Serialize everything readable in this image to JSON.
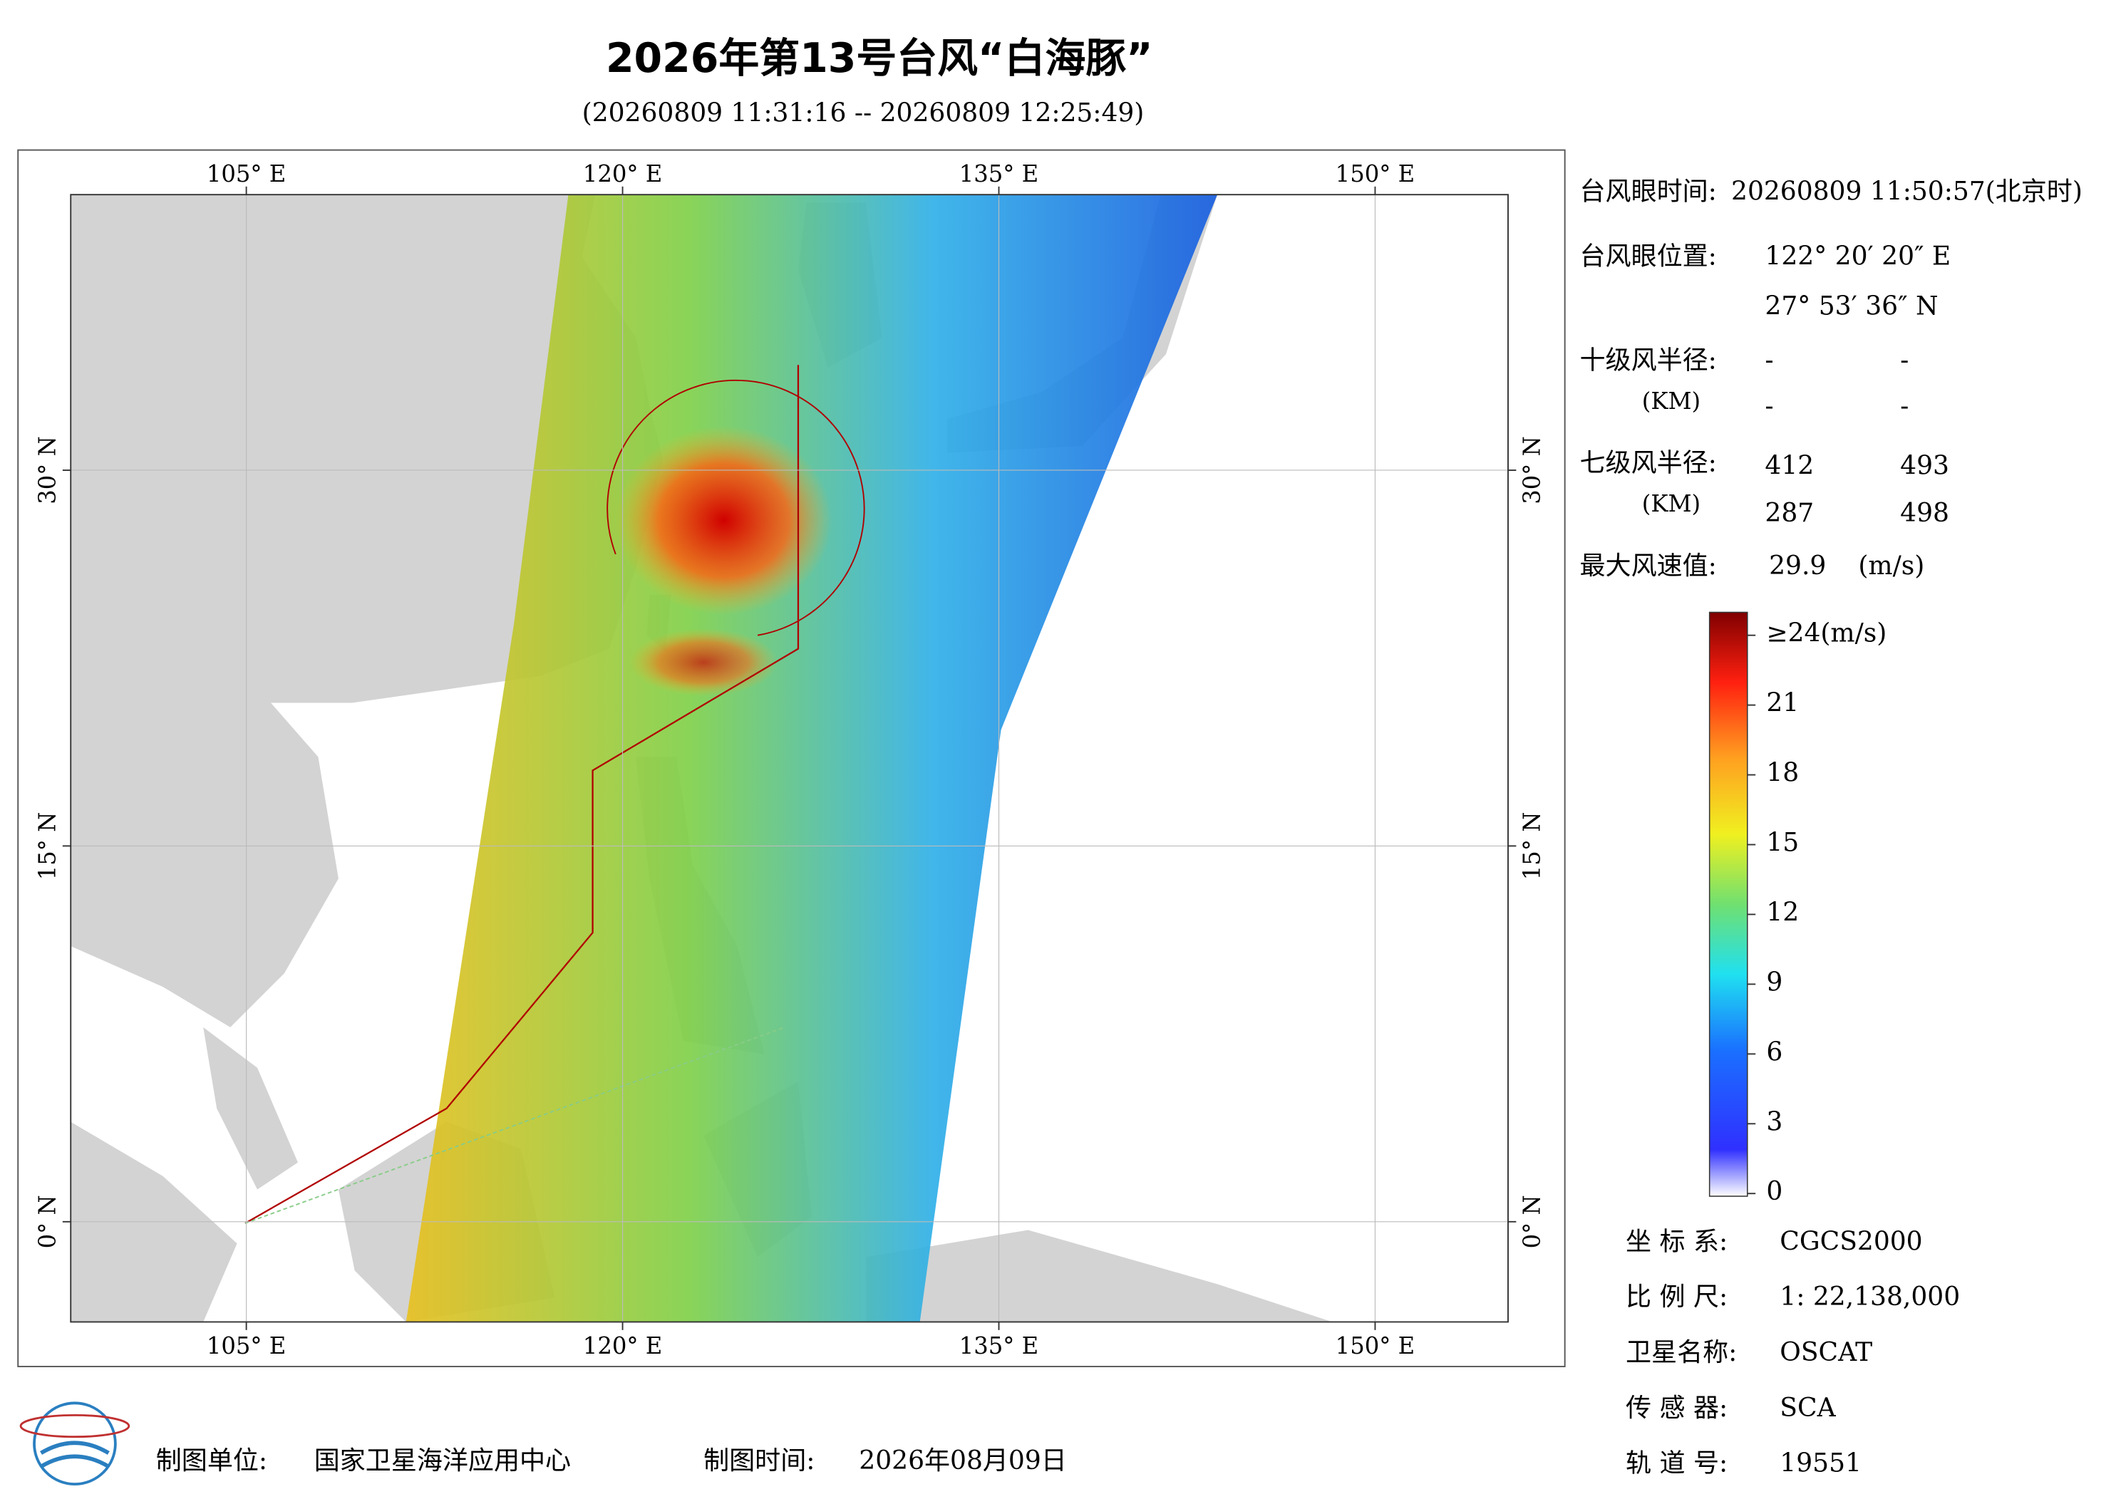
{
  "title": "2026年第13号台风“白海豚”",
  "subtitle": "(20260809 11:31:16 -- 20260809 12:25:49)",
  "map": {
    "lon_range": [
      98,
      155.3
    ],
    "lat_range": [
      -4,
      41
    ],
    "lon_ticks": [
      {
        "value": 105,
        "label": "105° E"
      },
      {
        "value": 120,
        "label": "120° E"
      },
      {
        "value": 135,
        "label": "135° E"
      },
      {
        "value": 150,
        "label": "150° E"
      }
    ],
    "lat_ticks": [
      {
        "value": 30,
        "label": "30° N"
      },
      {
        "value": 15,
        "label": "15° N"
      },
      {
        "value": 0,
        "label": "0° N"
      }
    ]
  },
  "info": {
    "eye_time_label": "台风眼时间:",
    "eye_time": "20260809 11:50:57(北京时)",
    "eye_pos_label": "台风眼位置:",
    "eye_lon": "122° 20′ 20″ E",
    "eye_lat": "27° 53′ 36″ N",
    "r10_label": "十级风半径:",
    "r10_unit": "(KM)",
    "r10": [
      "-",
      "-",
      "-",
      "-"
    ],
    "r7_label": "七级风半径:",
    "r7_unit": "(KM)",
    "r7": [
      412,
      493,
      287,
      498
    ],
    "max_label": "最大风速值:",
    "max_value": 29.9,
    "max_unit": "(m/s)"
  },
  "colorbar": {
    "ticks": [
      0,
      3,
      6,
      9,
      12,
      15,
      18,
      21,
      {
        "value": 24,
        "label": "≥24(m/s)"
      }
    ]
  },
  "meta": [
    {
      "label": "坐 标 系:",
      "value": "CGCS2000"
    },
    {
      "label": "比 例 尺:",
      "value": "1: 22,138,000"
    },
    {
      "label": "卫星名称:",
      "value": "OSCAT"
    },
    {
      "label": "传 感 器:",
      "value": "SCA"
    },
    {
      "label": "轨 道 号:",
      "value": "19551"
    }
  ],
  "footer": {
    "unit_label": "制图单位:",
    "unit": "国家卫星海洋应用中心",
    "date_label": "制图时间:",
    "date": "2026年08月09日"
  }
}
